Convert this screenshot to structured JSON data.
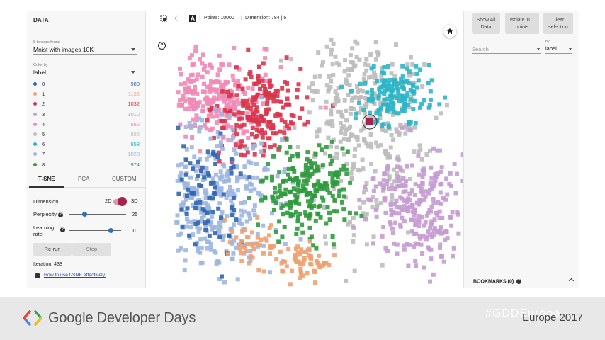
{
  "left_panel": {
    "title": "DATA",
    "tensors_found": "8 tensors found",
    "tensor_value": "Mnist with images 10K",
    "color_by_label": "Color by",
    "color_by_value": "label",
    "legend": [
      {
        "label": "0",
        "count": "980",
        "color": "#2f66b3"
      },
      {
        "label": "1",
        "count": "1135",
        "color": "#f0a070"
      },
      {
        "label": "2",
        "count": "1032",
        "color": "#d8344a"
      },
      {
        "label": "3",
        "count": "1010",
        "color": "#c59bd2"
      },
      {
        "label": "4",
        "count": "982",
        "color": "#f08ab6"
      },
      {
        "label": "5",
        "count": "892",
        "color": "#bdbdbd"
      },
      {
        "label": "6",
        "count": "958",
        "color": "#2bb5c7"
      },
      {
        "label": "7",
        "count": "1028",
        "color": "#9db6e0"
      },
      {
        "label": "8",
        "count": "974",
        "color": "#2e9a3c"
      }
    ],
    "tabs": [
      "T-SNE",
      "PCA",
      "CUSTOM"
    ],
    "dimension_label": "Dimension",
    "dimension_2d": "2D",
    "dimension_3d": "3D",
    "perplexity_label": "Perplexity",
    "perplexity_value": "25",
    "perplexity_fraction": 0.27,
    "learning_label_1": "Learning",
    "learning_label_2": "rate",
    "learning_value": "10",
    "learning_fraction": 0.8,
    "rerun_label": "Re-run",
    "stop_label": "Stop",
    "iteration_text": "Iteration: 438",
    "howto_link": "How to use t-SNE effectively."
  },
  "toolbar": {
    "points_text": "Points: 10000",
    "dimension_text": "Dimension: 784 | 5"
  },
  "right_panel": {
    "show_all": "Show All Data",
    "isolate": "Isolate 101 points",
    "clear": "Clear selection",
    "search_placeholder": "Search",
    "by_label": "by",
    "by_value": "label",
    "bookmarks": "BOOKMARKS (0)"
  },
  "footer": {
    "brand": "Google Developer Days",
    "hashtag": "#GDDEurope",
    "region": "Europe 2017"
  }
}
